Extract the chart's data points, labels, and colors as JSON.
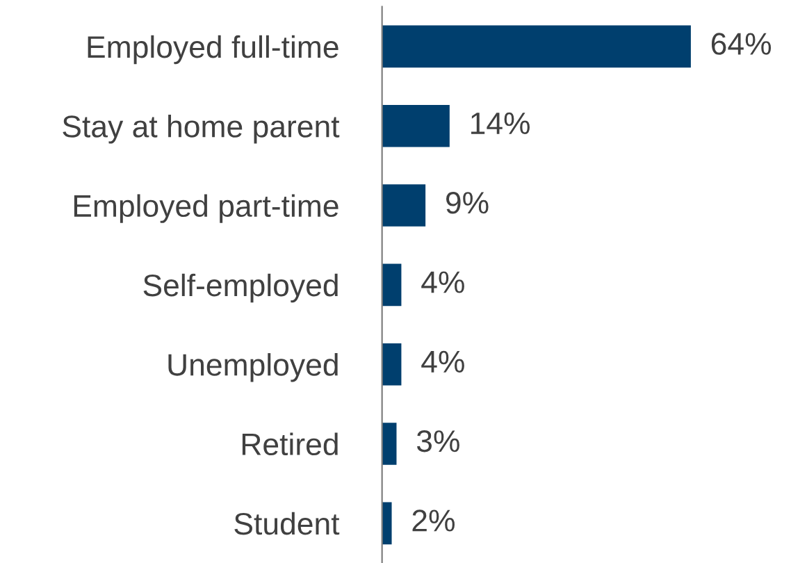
{
  "chart_data": {
    "type": "bar",
    "orientation": "horizontal",
    "categories": [
      "Employed full-time",
      "Stay at home parent",
      "Employed part-time",
      "Self-employed",
      "Unemployed",
      "Retired",
      "Student"
    ],
    "values": [
      64,
      14,
      9,
      4,
      4,
      3,
      2
    ],
    "color": "#003f6e",
    "data_labels": true,
    "value_labels": [
      "64%",
      "14%",
      "9%",
      "4%",
      "4%",
      "3%",
      "2%"
    ],
    "grid": false,
    "legend": false
  }
}
